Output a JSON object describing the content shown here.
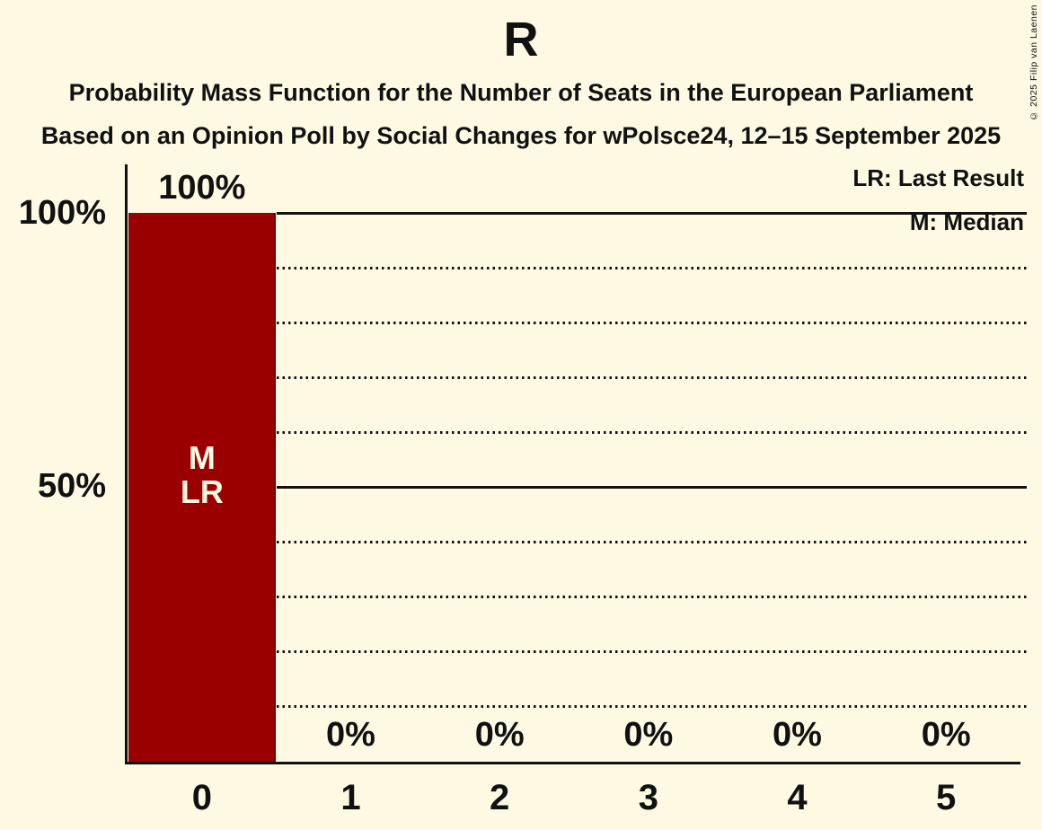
{
  "chart_data": {
    "type": "bar",
    "title": "R",
    "subtitle1": "Probability Mass Function for the Number of Seats in the European Parliament",
    "subtitle2": "Based on an Opinion Poll by Social Changes for wPolsce24, 12–15 September 2025",
    "categories": [
      "0",
      "1",
      "2",
      "3",
      "4",
      "5"
    ],
    "values": [
      100,
      0,
      0,
      0,
      0,
      0
    ],
    "value_labels": [
      "100%",
      "0%",
      "0%",
      "0%",
      "0%",
      "0%"
    ],
    "xlabel": "",
    "ylabel": "",
    "ylim": [
      0,
      100
    ],
    "ytick_labels": [
      "100%",
      "50%"
    ],
    "grid": "dotted every 10%, solid at 0%, 50%, 100%",
    "legend": {
      "position": "top-right",
      "entries": [
        "LR: Last Result",
        "M: Median"
      ]
    },
    "bar_annotations": {
      "0": "M\nLR"
    },
    "colors": {
      "background": "#fdf9e3",
      "bar": "#9a0000",
      "text": "#111111",
      "bar_text": "#fdf9e3"
    }
  },
  "copyright": "© 2025 Filip van Laenen"
}
